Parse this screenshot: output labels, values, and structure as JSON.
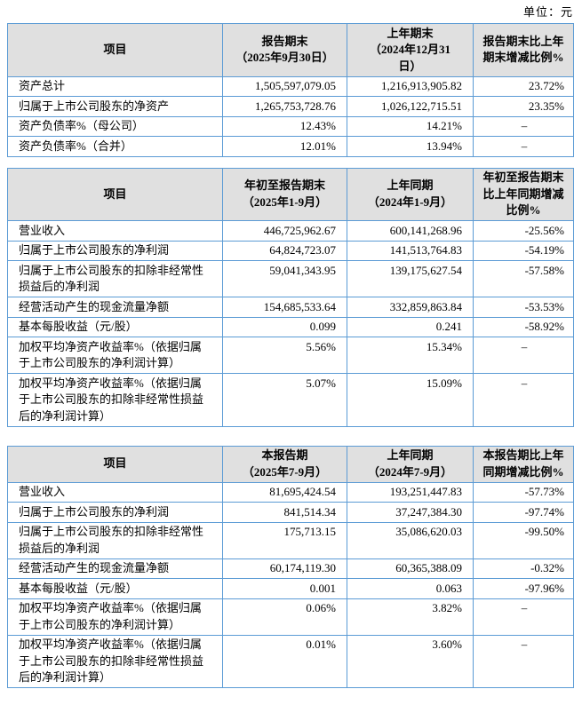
{
  "unit_label": "单位：元",
  "colors": {
    "table_border": "#5b9bd5",
    "header_background": "#e0e0e0",
    "text": "#000000"
  },
  "tables": [
    {
      "title": "period-end-summary",
      "header": {
        "col1": [
          "项目"
        ],
        "col2": [
          "报告期末",
          "（2025年9月30日）"
        ],
        "col3": [
          "上年期末",
          "（2024年12月31",
          "日）"
        ],
        "col4": [
          "报告期末比上年",
          "期末增减比例%"
        ]
      },
      "rows": [
        {
          "label": "资产总计",
          "current": "1,505,597,079.05",
          "prior": "1,216,913,905.82",
          "change": "23.72%"
        },
        {
          "label": "归属于上市公司股东的净资产",
          "current": "1,265,753,728.76",
          "prior": "1,026,122,715.51",
          "change": "23.35%"
        },
        {
          "label": "资产负债率%（母公司）",
          "current": "12.43%",
          "prior": "14.21%",
          "change": "–"
        },
        {
          "label": "资产负债率%（合并）",
          "current": "12.01%",
          "prior": "13.94%",
          "change": "–"
        }
      ]
    },
    {
      "title": "year-to-date-summary",
      "header": {
        "col1": [
          "项目"
        ],
        "col2": [
          "年初至报告期末",
          "（2025年1-9月）"
        ],
        "col3": [
          "上年同期",
          "（2024年1-9月）"
        ],
        "col4": [
          "年初至报告期末",
          "比上年同期增减",
          "比例%"
        ]
      },
      "rows": [
        {
          "label": "营业收入",
          "current": "446,725,962.67",
          "prior": "600,141,268.96",
          "change": "-25.56%"
        },
        {
          "label": "归属于上市公司股东的净利润",
          "current": "64,824,723.07",
          "prior": "141,513,764.83",
          "change": "-54.19%"
        },
        {
          "label": "归属于上市公司股东的扣除非经常性损益后的净利润",
          "current": "59,041,343.95",
          "prior": "139,175,627.54",
          "change": "-57.58%"
        },
        {
          "label": "经营活动产生的现金流量净额",
          "current": "154,685,533.64",
          "prior": "332,859,863.84",
          "change": "-53.53%"
        },
        {
          "label": "基本每股收益（元/股）",
          "current": "0.099",
          "prior": "0.241",
          "change": "-58.92%"
        },
        {
          "label": "加权平均净资产收益率%（依据归属于上市公司股东的净利润计算）",
          "current": "5.56%",
          "prior": "15.34%",
          "change": "–"
        },
        {
          "label": "加权平均净资产收益率%（依据归属于上市公司股东的扣除非经常性损益后的净利润计算）",
          "current": "5.07%",
          "prior": "15.09%",
          "change": "–"
        }
      ]
    },
    {
      "title": "current-quarter-summary",
      "header": {
        "col1": [
          "项目"
        ],
        "col2": [
          "本报告期",
          "（2025年7-9月）"
        ],
        "col3": [
          "上年同期",
          "（2024年7-9月）"
        ],
        "col4": [
          "本报告期比上年",
          "同期增减比例%"
        ]
      },
      "rows": [
        {
          "label": "营业收入",
          "current": "81,695,424.54",
          "prior": "193,251,447.83",
          "change": "-57.73%"
        },
        {
          "label": "归属于上市公司股东的净利润",
          "current": "841,514.34",
          "prior": "37,247,384.30",
          "change": "-97.74%"
        },
        {
          "label": "归属于上市公司股东的扣除非经常性损益后的净利润",
          "current": "175,713.15",
          "prior": "35,086,620.03",
          "change": "-99.50%"
        },
        {
          "label": "经营活动产生的现金流量净额",
          "current": "60,174,119.30",
          "prior": "60,365,388.09",
          "change": "-0.32%"
        },
        {
          "label": "基本每股收益（元/股）",
          "current": "0.001",
          "prior": "0.063",
          "change": "-97.96%"
        },
        {
          "label": "加权平均净资产收益率%（依据归属于上市公司股东的净利润计算）",
          "current": "0.06%",
          "prior": "3.82%",
          "change": "–"
        },
        {
          "label": "加权平均净资产收益率%（依据归属于上市公司股东的扣除非经常性损益后的净利润计算）",
          "current": "0.01%",
          "prior": "3.60%",
          "change": "–"
        }
      ]
    }
  ]
}
